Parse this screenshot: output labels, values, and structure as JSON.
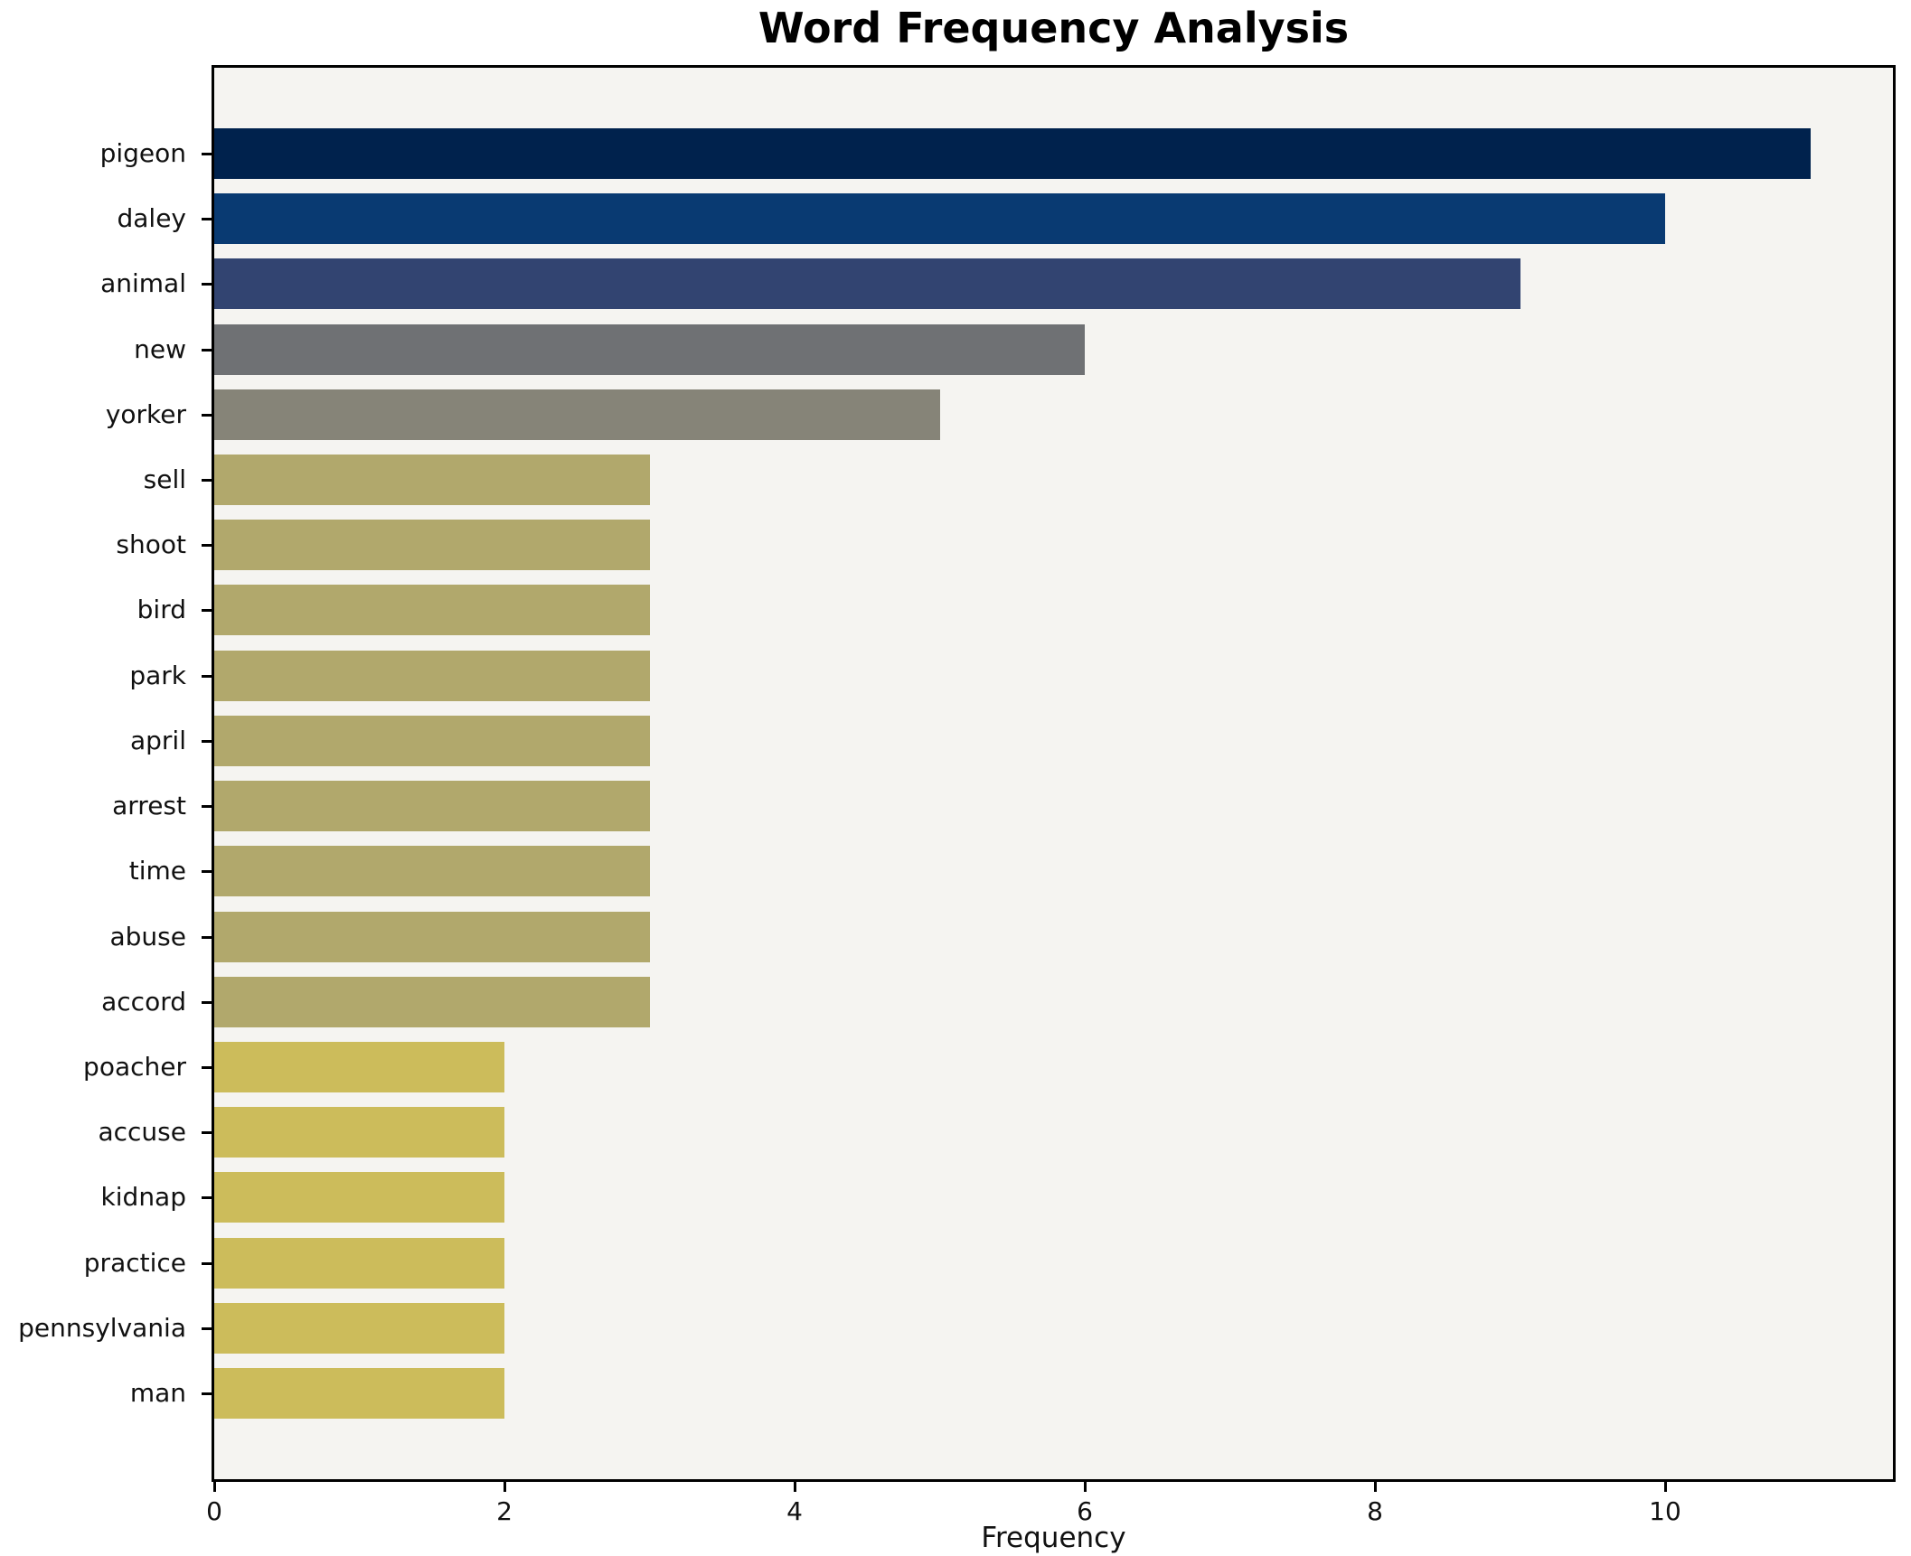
{
  "chart_data": {
    "type": "bar",
    "orientation": "horizontal",
    "title": "Word Frequency Analysis",
    "xlabel": "Frequency",
    "ylabel": "",
    "categories": [
      "pigeon",
      "daley",
      "animal",
      "new",
      "yorker",
      "sell",
      "shoot",
      "bird",
      "park",
      "april",
      "arrest",
      "time",
      "abuse",
      "accord",
      "poacher",
      "accuse",
      "kidnap",
      "practice",
      "pennsylvania",
      "man"
    ],
    "values": [
      11,
      10,
      9,
      6,
      5,
      3,
      3,
      3,
      3,
      3,
      3,
      3,
      3,
      3,
      2,
      2,
      2,
      2,
      2,
      2
    ],
    "bar_colors": [
      "#00224d",
      "#093a72",
      "#324471",
      "#6f7174",
      "#868478",
      "#b1a86c",
      "#b1a86c",
      "#b1a86c",
      "#b1a86c",
      "#b1a86c",
      "#b1a86c",
      "#b1a86c",
      "#b1a86c",
      "#b1a86c",
      "#ccbc5b",
      "#ccbc5b",
      "#ccbc5b",
      "#ccbc5b",
      "#ccbc5b",
      "#ccbc5b"
    ],
    "xlim": [
      0,
      11.57
    ],
    "xticks": [
      0,
      2,
      4,
      6,
      8,
      10
    ],
    "grid": false,
    "legend": null,
    "plot_background": "#f5f4f1",
    "figure_background": "#ffffff"
  }
}
